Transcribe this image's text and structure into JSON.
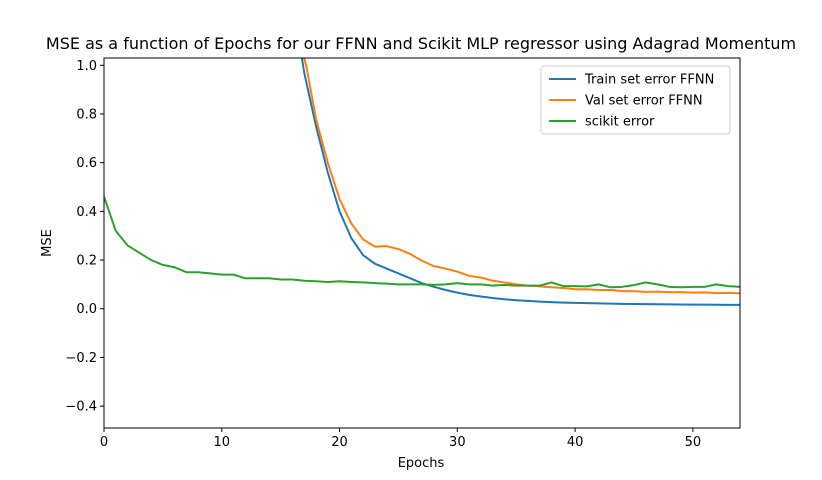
{
  "chart_data": {
    "type": "line",
    "title": "MSE as a function of Epochs for our FFNN and Scikit MLP regressor using Adagrad Momentum",
    "xlabel": "Epochs",
    "ylabel": "MSE",
    "xlim": [
      0,
      54
    ],
    "ylim": [
      -0.49,
      1.03
    ],
    "x_ticks": [
      0,
      10,
      20,
      30,
      40,
      50
    ],
    "x_tick_labels": [
      "0",
      "10",
      "20",
      "30",
      "40",
      "50"
    ],
    "y_ticks": [
      -0.4,
      -0.2,
      0.0,
      0.2,
      0.4,
      0.6,
      0.8,
      1.0
    ],
    "y_tick_labels": [
      "−0.4",
      "−0.2",
      "0.0",
      "0.2",
      "0.4",
      "0.6",
      "0.8",
      "1.0"
    ],
    "grid": false,
    "legend_position": "top-right",
    "series": [
      {
        "name": "Train set error FFNN",
        "color": "#1f77b4",
        "x": [
          16.8,
          17,
          18,
          19,
          20,
          21,
          22,
          23,
          24,
          25,
          26,
          27,
          28,
          29,
          30,
          31,
          32,
          33,
          34,
          35,
          36,
          37,
          38,
          39,
          40,
          41,
          42,
          43,
          44,
          45,
          46,
          47,
          48,
          49,
          50,
          51,
          52,
          53,
          54
        ],
        "y": [
          1.03,
          0.97,
          0.75,
          0.56,
          0.4,
          0.29,
          0.22,
          0.185,
          0.165,
          0.145,
          0.125,
          0.105,
          0.09,
          0.077,
          0.066,
          0.057,
          0.05,
          0.044,
          0.039,
          0.035,
          0.032,
          0.029,
          0.027,
          0.025,
          0.024,
          0.023,
          0.022,
          0.021,
          0.02,
          0.0195,
          0.019,
          0.0185,
          0.018,
          0.0175,
          0.017,
          0.0168,
          0.0165,
          0.016,
          0.016
        ]
      },
      {
        "name": "Val set error FFNN",
        "color": "#ff7f0e",
        "x": [
          17.0,
          17.2,
          18,
          19,
          20,
          21,
          22,
          23,
          24,
          25,
          26,
          27,
          28,
          29,
          30,
          31,
          32,
          33,
          34,
          35,
          36,
          37,
          38,
          39,
          40,
          41,
          42,
          43,
          44,
          45,
          46,
          47,
          48,
          49,
          50,
          51,
          52,
          53,
          54
        ],
        "y": [
          1.03,
          0.99,
          0.78,
          0.6,
          0.45,
          0.35,
          0.285,
          0.255,
          0.257,
          0.245,
          0.225,
          0.197,
          0.175,
          0.165,
          0.152,
          0.135,
          0.128,
          0.115,
          0.108,
          0.1,
          0.095,
          0.092,
          0.088,
          0.085,
          0.08,
          0.08,
          0.077,
          0.077,
          0.073,
          0.072,
          0.069,
          0.07,
          0.068,
          0.068,
          0.066,
          0.067,
          0.064,
          0.065,
          0.063
        ]
      },
      {
        "name": "scikit error",
        "color": "#2ca02c",
        "x": [
          0,
          1,
          2,
          3,
          4,
          5,
          6,
          7,
          8,
          9,
          10,
          11,
          12,
          13,
          14,
          15,
          16,
          17,
          18,
          19,
          20,
          21,
          22,
          23,
          24,
          25,
          26,
          27,
          28,
          29,
          30,
          31,
          32,
          33,
          34,
          35,
          36,
          37,
          38,
          39,
          40,
          41,
          42,
          43,
          44,
          45,
          46,
          47,
          48,
          49,
          50,
          51,
          52,
          53,
          54
        ],
        "y": [
          0.46,
          0.32,
          0.26,
          0.23,
          0.2,
          0.18,
          0.17,
          0.15,
          0.15,
          0.145,
          0.14,
          0.14,
          0.125,
          0.125,
          0.125,
          0.12,
          0.12,
          0.115,
          0.113,
          0.11,
          0.113,
          0.11,
          0.108,
          0.105,
          0.103,
          0.1,
          0.1,
          0.1,
          0.098,
          0.1,
          0.105,
          0.1,
          0.1,
          0.095,
          0.098,
          0.095,
          0.095,
          0.095,
          0.108,
          0.093,
          0.093,
          0.092,
          0.1,
          0.088,
          0.09,
          0.097,
          0.108,
          0.1,
          0.09,
          0.088,
          0.09,
          0.09,
          0.1,
          0.093,
          0.09
        ]
      }
    ]
  }
}
